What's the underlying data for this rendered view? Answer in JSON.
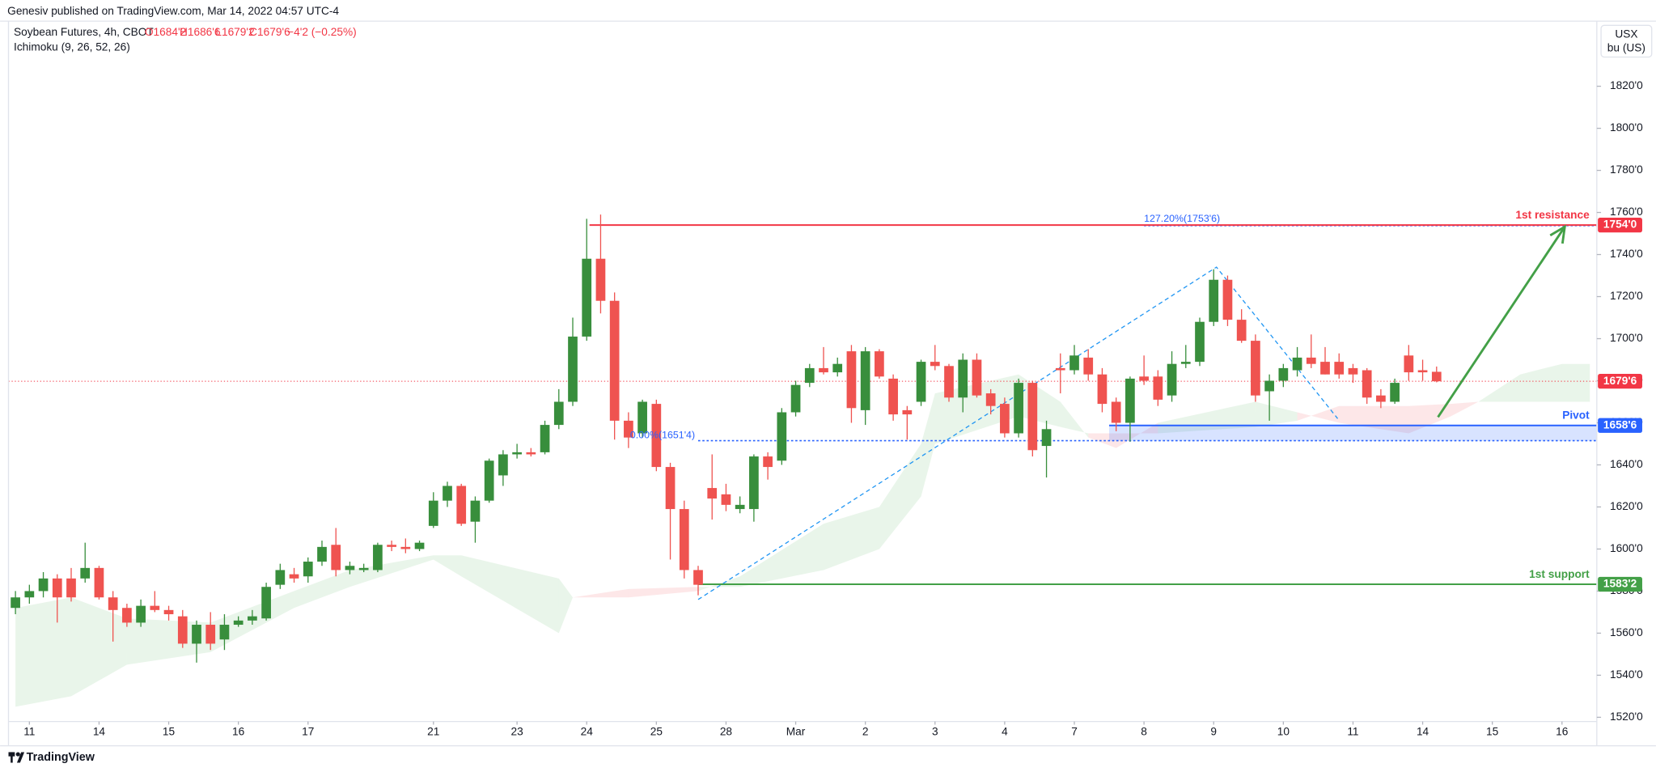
{
  "header": {
    "published": "Genesiv published on TradingView.com, Mar 14, 2022 04:57 UTC-4",
    "symbol": "Soybean Futures, 4h, CBOT",
    "ohlc_labels": [
      "O1684'2",
      "H1686'6",
      "L1679'2",
      "C1679'6",
      "−4'2 (−0.25%)"
    ],
    "indicator": "Ichimoku (9, 26, 52, 26)",
    "currency": "USX",
    "unit": "bu (US)"
  },
  "footer": {
    "brand": "TradingView"
  },
  "chart_data": {
    "type": "candlestick",
    "up_color": "#388e3c",
    "down_color": "#ef5350",
    "grid": false,
    "open": [
      1572,
      1577,
      1580,
      1586,
      1586,
      1586,
      1591,
      1577,
      1572,
      1565,
      1573,
      1571,
      1568,
      1555,
      1564,
      1557,
      1564,
      1566,
      1567,
      1583,
      1588,
      1587,
      1594,
      1602,
      1590,
      1590,
      1590,
      1602,
      1601,
      1600,
      1611,
      1623,
      1630,
      1613,
      1623,
      1635,
      1645,
      1646,
      1646,
      1659,
      1670,
      1701,
      1738,
      1718,
      1661,
      1655,
      1669,
      1639,
      1619,
      1590,
      1629,
      1626,
      1619,
      1619,
      1644,
      1642,
      1665,
      1679,
      1686,
      1684,
      1694,
      1666,
      1694,
      1681,
      1666,
      1670,
      1689,
      1687,
      1672,
      1690,
      1674,
      1669,
      1655,
      1679,
      1649,
      1686,
      1685,
      1691,
      1683,
      1670,
      1660,
      1682,
      1682,
      1673,
      1688,
      1689,
      1708,
      1728,
      1709,
      1699,
      1675,
      1680,
      1685,
      1691,
      1689,
      1689,
      1686,
      1685,
      1673,
      1670,
      1692,
      1685,
      1684.25
    ],
    "high": [
      1580,
      1583,
      1589,
      1588,
      1591,
      1603,
      1592,
      1580,
      1574,
      1576,
      1580,
      1573,
      1571,
      1566,
      1570,
      1569,
      1568,
      1571,
      1584,
      1593,
      1591,
      1596,
      1604,
      1610,
      1594,
      1593,
      1603,
      1604,
      1605,
      1604,
      1627,
      1632,
      1631,
      1625,
      1643,
      1647,
      1650,
      1648,
      1661,
      1676,
      1710,
      1757,
      1759,
      1722,
      1665,
      1671,
      1671,
      1641,
      1623,
      1592,
      1645,
      1631,
      1625,
      1645,
      1646,
      1667,
      1680,
      1688,
      1696,
      1691,
      1697,
      1696,
      1695,
      1683,
      1668,
      1690,
      1697,
      1688,
      1693,
      1693,
      1676,
      1672,
      1681,
      1680,
      1661,
      1693,
      1697,
      1695,
      1686,
      1672,
      1682,
      1692,
      1685,
      1694,
      1697,
      1710,
      1733,
      1730,
      1714,
      1702,
      1683,
      1688,
      1696,
      1702,
      1696,
      1693,
      1688,
      1686,
      1676,
      1681,
      1697,
      1690,
      1686.75
    ],
    "low": [
      1569,
      1574,
      1577,
      1565,
      1575,
      1584,
      1576,
      1556,
      1563,
      1563,
      1570,
      1566,
      1553,
      1546,
      1552,
      1552,
      1563,
      1564,
      1566,
      1581,
      1584,
      1584,
      1592,
      1587,
      1588,
      1589,
      1589,
      1599,
      1598,
      1599,
      1610,
      1620,
      1611,
      1603,
      1622,
      1630,
      1643,
      1644,
      1645,
      1657,
      1668,
      1699,
      1712,
      1652,
      1648,
      1653,
      1637,
      1595,
      1586,
      1578,
      1614,
      1618,
      1617,
      1613,
      1633,
      1640,
      1663,
      1677,
      1683,
      1682,
      1660,
      1659,
      1681,
      1661,
      1652,
      1668,
      1685,
      1670,
      1665,
      1672,
      1664,
      1653,
      1653,
      1644,
      1634,
      1674,
      1683,
      1680,
      1665,
      1656,
      1651,
      1678,
      1668,
      1670,
      1686,
      1687,
      1706,
      1706,
      1698,
      1670,
      1661,
      1677,
      1682,
      1686,
      1683,
      1681,
      1679,
      1669,
      1667,
      1669,
      1680,
      1680,
      1679.25
    ],
    "close": [
      1577,
      1580,
      1586,
      1577,
      1577,
      1591,
      1577,
      1571,
      1565,
      1573,
      1571,
      1569,
      1555,
      1564,
      1555,
      1564,
      1566,
      1568,
      1582,
      1590,
      1586,
      1594,
      1601,
      1590,
      1592,
      1591,
      1602,
      1601,
      1600,
      1603,
      1623,
      1630,
      1612,
      1623,
      1642,
      1645,
      1646,
      1645,
      1659,
      1670,
      1701,
      1738,
      1718,
      1661,
      1653,
      1670,
      1639,
      1619,
      1590,
      1583,
      1624,
      1621,
      1621,
      1644,
      1639,
      1665,
      1678,
      1686,
      1684,
      1688,
      1667,
      1694,
      1682,
      1664,
      1664,
      1689,
      1687,
      1672,
      1690,
      1673,
      1668,
      1655,
      1679,
      1647,
      1657,
      1685,
      1692,
      1683,
      1669,
      1660,
      1681,
      1680,
      1671,
      1688,
      1689,
      1708,
      1728,
      1709,
      1699,
      1673,
      1680,
      1686,
      1691,
      1688,
      1683,
      1683,
      1683,
      1672,
      1670,
      1679,
      1684,
      1684,
      1679.75
    ],
    "xlim": [
      -0.5,
      113.5
    ],
    "xticks": [
      {
        "value": 1,
        "label": "11"
      },
      {
        "value": 6,
        "label": "14"
      },
      {
        "value": 11,
        "label": "15"
      },
      {
        "value": 16,
        "label": "16"
      },
      {
        "value": 21,
        "label": "17"
      },
      {
        "value": 30,
        "label": "21"
      },
      {
        "value": 36,
        "label": "23"
      },
      {
        "value": 41,
        "label": "24"
      },
      {
        "value": 46,
        "label": "25"
      },
      {
        "value": 51,
        "label": "28"
      },
      {
        "value": 56,
        "label": "Mar"
      },
      {
        "value": 61,
        "label": "2"
      },
      {
        "value": 66,
        "label": "3"
      },
      {
        "value": 71,
        "label": "4"
      },
      {
        "value": 76,
        "label": "7"
      },
      {
        "value": 81,
        "label": "8"
      },
      {
        "value": 86,
        "label": "9"
      },
      {
        "value": 91,
        "label": "10"
      },
      {
        "value": 96,
        "label": "11"
      },
      {
        "value": 101,
        "label": "14"
      },
      {
        "value": 106,
        "label": "15"
      },
      {
        "value": 111,
        "label": "16"
      }
    ],
    "ylim": [
      1518,
      1861
    ],
    "yticks": [
      {
        "value": 1520,
        "label": "1520'0"
      },
      {
        "value": 1540,
        "label": "1540'0"
      },
      {
        "value": 1560,
        "label": "1560'0"
      },
      {
        "value": 1580,
        "label": "1580'0"
      },
      {
        "value": 1600,
        "label": "1600'0"
      },
      {
        "value": 1620,
        "label": "1620'0"
      },
      {
        "value": 1640,
        "label": "1640'0"
      },
      {
        "value": 1660,
        "label": "1660'0"
      },
      {
        "value": 1680,
        "label": "1680'0"
      },
      {
        "value": 1700,
        "label": "1700'0"
      },
      {
        "value": 1720,
        "label": "1720'0"
      },
      {
        "value": 1740,
        "label": "1740'0"
      },
      {
        "value": 1760,
        "label": "1760'0"
      },
      {
        "value": 1780,
        "label": "1780'0"
      },
      {
        "value": 1800,
        "label": "1800'0"
      },
      {
        "value": 1820,
        "label": "1820'0"
      }
    ],
    "cloud": {
      "up_color": "rgba(76,175,80,0.12)",
      "down_color": "rgba(242,54,69,0.12)",
      "x": [
        0,
        4,
        8,
        14,
        20,
        24,
        30,
        32,
        39,
        40,
        44,
        49,
        52,
        58,
        62,
        65,
        66,
        72,
        75,
        77,
        79,
        82,
        89,
        92,
        95,
        100,
        103,
        105,
        108,
        111,
        113
      ],
      "span_a": [
        1572,
        1577,
        1567,
        1565,
        1580,
        1590,
        1597,
        1597,
        1586,
        1577,
        1577,
        1580,
        1587,
        1612,
        1620,
        1650,
        1674,
        1683,
        1670,
        1653,
        1648,
        1660,
        1670,
        1665,
        1660,
        1655,
        1663,
        1670,
        1683,
        1688,
        1688
      ],
      "span_b": [
        1525,
        1530,
        1545,
        1551,
        1572,
        1582,
        1595,
        1587,
        1560,
        1577,
        1581,
        1582,
        1582,
        1590,
        1600,
        1625,
        1650,
        1663,
        1658,
        1655,
        1655,
        1655,
        1658,
        1661,
        1668,
        1668,
        1669,
        1670,
        1670,
        1670,
        1670
      ]
    },
    "levels": [
      {
        "name": "1st resistance",
        "value": 1754,
        "label": "1754'0",
        "color": "#f23645",
        "from": 41.2
      },
      {
        "name": "Pivot",
        "value": 1658.75,
        "label": "1658'6",
        "color": "#2962ff",
        "from": 78.5
      },
      {
        "name": "1st support",
        "value": 1583.25,
        "label": "1583'2",
        "color": "#43a047",
        "from": 49
      }
    ],
    "last_price": {
      "value": 1679.75,
      "label": "1679'6",
      "color": "#f23645"
    },
    "pivot_zone": {
      "top": 1658.75,
      "bottom": 1651.5,
      "from": 78.5,
      "color": "rgba(41,98,255,0.18)"
    },
    "fib_levels": [
      {
        "label": "127.20%(1753'6)",
        "value": 1753.75,
        "from": 81,
        "color": "#2962ff"
      },
      {
        "label": "0.00%(1651'4)",
        "value": 1651.5,
        "from": 49,
        "color": "#2962ff"
      }
    ],
    "trend_line": {
      "x": [
        49,
        86.2,
        94.9
      ],
      "y": [
        1576,
        1734,
        1662
      ],
      "color": "#2196f3"
    },
    "arrow": {
      "x": [
        102.1,
        111.2
      ],
      "y": [
        1662.7,
        1753.2
      ],
      "color": "#43a047"
    }
  }
}
